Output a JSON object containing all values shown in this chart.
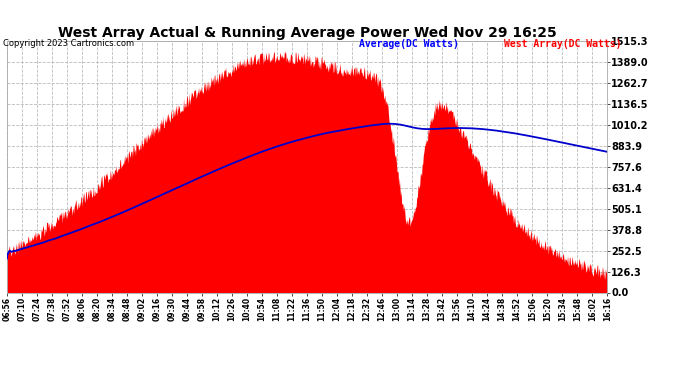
{
  "title": "West Array Actual & Running Average Power Wed Nov 29 16:25",
  "copyright": "Copyright 2023 Cartronics.com",
  "legend_average": "Average(DC Watts)",
  "legend_west": "West Array(DC Watts)",
  "ymax": 1515.3,
  "yticks": [
    0.0,
    126.3,
    252.5,
    378.8,
    505.1,
    631.4,
    757.6,
    883.9,
    1010.2,
    1136.5,
    1262.7,
    1389.0,
    1515.3
  ],
  "background_color": "#ffffff",
  "grid_color": "#bbbbbb",
  "fill_color": "#ff0000",
  "line_color": "#0000cc",
  "title_color": "#000000",
  "copyright_color": "#000000",
  "legend_avg_color": "#0000ff",
  "legend_west_color": "#ff0000",
  "x_labels": [
    "06:56",
    "07:10",
    "07:24",
    "07:38",
    "07:52",
    "08:06",
    "08:20",
    "08:34",
    "08:48",
    "09:02",
    "09:16",
    "09:30",
    "09:44",
    "09:58",
    "10:12",
    "10:26",
    "10:40",
    "10:54",
    "11:08",
    "11:22",
    "11:36",
    "11:50",
    "12:04",
    "12:18",
    "12:32",
    "12:46",
    "13:00",
    "13:14",
    "13:28",
    "13:42",
    "13:56",
    "14:10",
    "14:24",
    "14:38",
    "14:52",
    "15:06",
    "15:20",
    "15:34",
    "15:48",
    "16:02",
    "16:16"
  ]
}
